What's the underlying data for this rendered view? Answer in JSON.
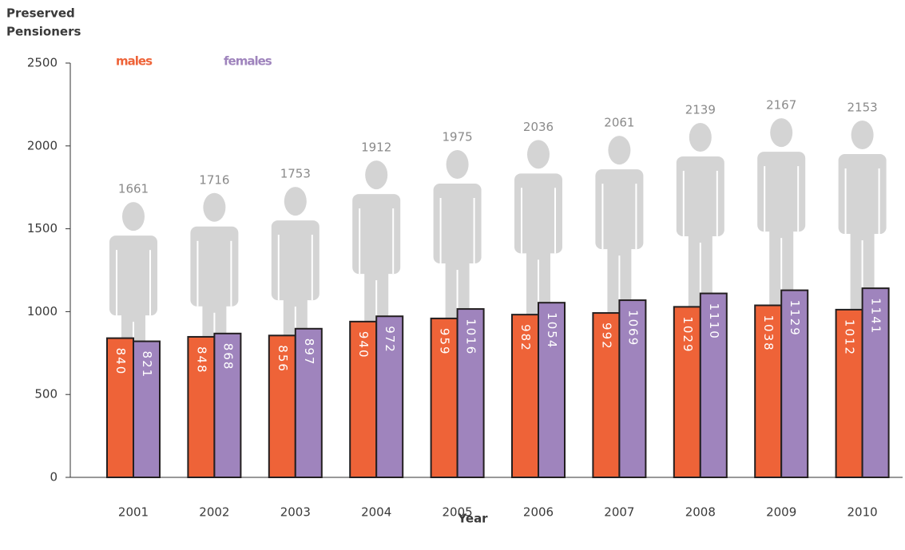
{
  "chart_data": {
    "type": "bar",
    "ylabel": [
      "Preserved",
      "Pensioners"
    ],
    "xlabel": "Year",
    "categories": [
      "2001",
      "2002",
      "2003",
      "2004",
      "2005",
      "2006",
      "2007",
      "2008",
      "2009",
      "2010"
    ],
    "series": [
      {
        "name": "males",
        "color": "#ee6338",
        "values": [
          840,
          848,
          856,
          940,
          959,
          982,
          992,
          1029,
          1038,
          1012
        ]
      },
      {
        "name": "females",
        "color": "#9f84bd",
        "values": [
          821,
          868,
          897,
          972,
          1016,
          1054,
          1069,
          1110,
          1129,
          1141
        ]
      }
    ],
    "totals": {
      "color": "#d4d4d4",
      "values": [
        1661,
        1716,
        1753,
        1912,
        1975,
        2036,
        2061,
        2139,
        2167,
        2153
      ]
    },
    "ylim": [
      0,
      2500
    ],
    "yticks": [
      0,
      500,
      1000,
      1500,
      2000,
      2500
    ]
  }
}
